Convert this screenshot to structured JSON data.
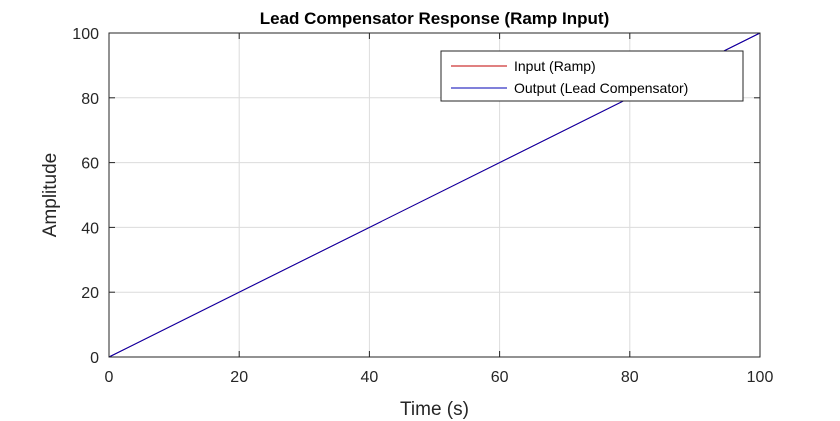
{
  "chart_data": {
    "type": "line",
    "title": "Lead Compensator Response (Ramp Input)",
    "xlabel": "Time (s)",
    "ylabel": "Amplitude",
    "xlim": [
      0,
      100
    ],
    "ylim": [
      0,
      100
    ],
    "xticks": [
      0,
      20,
      40,
      60,
      80,
      100
    ],
    "yticks": [
      0,
      20,
      40,
      60,
      80,
      100
    ],
    "grid": true,
    "legend_position": "top-right",
    "series": [
      {
        "name": "Input (Ramp)",
        "color": "#c00000",
        "x": [
          0,
          100
        ],
        "y": [
          0,
          100
        ]
      },
      {
        "name": "Output (Lead Compensator)",
        "color": "#0000b4",
        "x": [
          0,
          100
        ],
        "y": [
          0,
          100
        ]
      }
    ]
  }
}
